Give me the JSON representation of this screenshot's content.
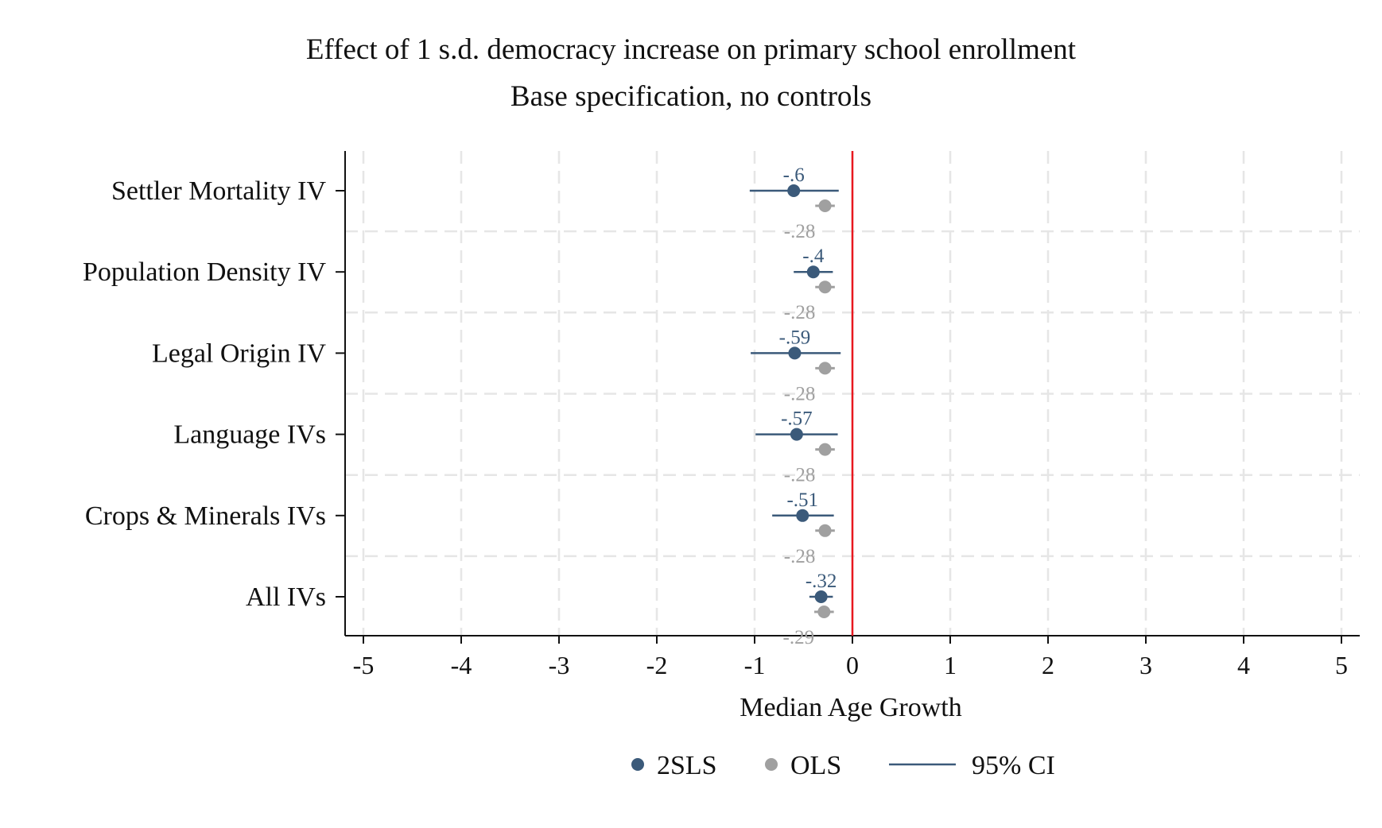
{
  "chart_data": {
    "type": "scatter",
    "title": "Effect of 1 s.d. democracy increase on primary school enrollment",
    "subtitle": "Base specification, no controls",
    "xlabel": "Median Age Growth",
    "ylabel": "",
    "xlim": [
      -5,
      5
    ],
    "x_ticks": [
      "-5",
      "-4",
      "-3",
      "-2",
      "-1",
      "0",
      "1",
      "2",
      "3",
      "4",
      "5"
    ],
    "reference_line": {
      "x": 0,
      "color": "#e8181f"
    },
    "grid": true,
    "legend_position": "bottom",
    "categories": [
      "Settler Mortality IV",
      "Population Density IV",
      "Legal Origin IV",
      "Language IVs",
      "Crops & Minerals IVs",
      "All IVs"
    ],
    "series": [
      {
        "name": "2SLS",
        "color": "#3b5a7a",
        "values": [
          -0.6,
          -0.4,
          -0.59,
          -0.57,
          -0.51,
          -0.32
        ],
        "labels": [
          "-.6",
          "-.4",
          "-.59",
          "-.57",
          "-.51",
          "-.32"
        ],
        "ci_low": [
          -1.05,
          -0.6,
          -1.04,
          -0.99,
          -0.82,
          -0.44
        ],
        "ci_high": [
          -0.14,
          -0.2,
          -0.12,
          -0.15,
          -0.19,
          -0.2
        ]
      },
      {
        "name": "OLS",
        "color": "#a0a0a0",
        "values": [
          -0.28,
          -0.28,
          -0.28,
          -0.28,
          -0.28,
          -0.29
        ],
        "labels": [
          "-.28",
          "-.28",
          "-.28",
          "-.28",
          "-.28",
          "-.29"
        ],
        "ci_low": [
          -0.38,
          -0.38,
          -0.38,
          -0.38,
          -0.38,
          -0.39
        ],
        "ci_high": [
          -0.18,
          -0.18,
          -0.18,
          -0.18,
          -0.18,
          -0.19
        ]
      }
    ],
    "legend": {
      "items": [
        {
          "label": "2SLS",
          "marker": "dot",
          "color": "#3b5a7a"
        },
        {
          "label": "OLS",
          "marker": "dot",
          "color": "#a0a0a0"
        },
        {
          "label": "95% CI",
          "marker": "line",
          "color": "#3b5a7a"
        }
      ]
    }
  }
}
